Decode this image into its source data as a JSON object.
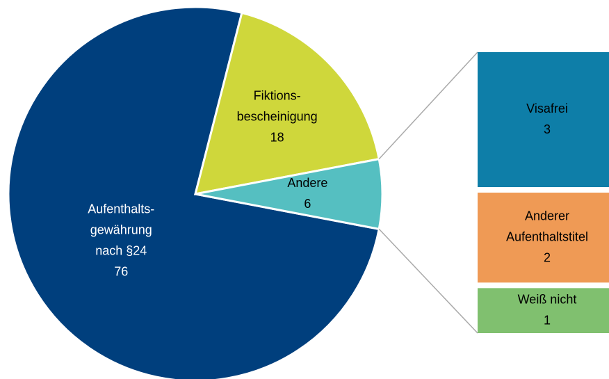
{
  "chart_data": {
    "type": "pie-of-bar",
    "categories": [
      "Aufenthalts-\ngewährung\nnach §24",
      "Fiktions-\nbescheinigung",
      "Andere"
    ],
    "values": [
      76,
      18,
      6
    ],
    "colors": [
      "#003f7d",
      "#cfd73b",
      "#55bfc1"
    ],
    "bar_categories": [
      "Visafrei",
      "Anderer\nAufenthaltstitel",
      "Weiß nicht"
    ],
    "bar_values": [
      3,
      2,
      1
    ],
    "bar_colors": [
      "#0e7ea8",
      "#ef9a55",
      "#80c06f"
    ]
  }
}
